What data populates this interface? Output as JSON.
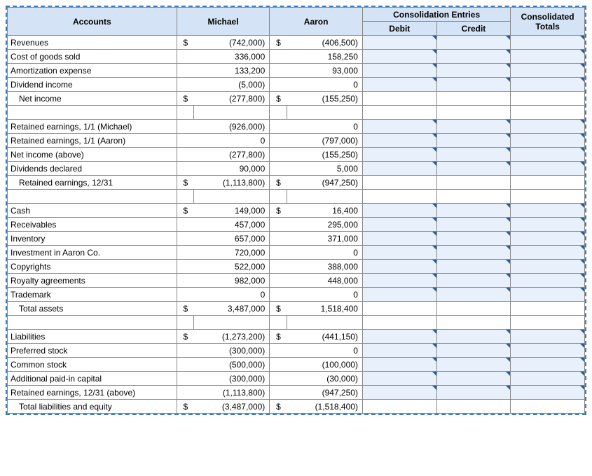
{
  "colors": {
    "header_bg": "#d4e3f5",
    "border": "#888888",
    "dash_border": "#3a7abf",
    "input_bg": "#e8f1fb",
    "corner": "#2a5da8"
  },
  "headers": {
    "accounts": "Accounts",
    "michael": "Michael",
    "aaron": "Aaron",
    "consolidation": "Consolidation Entries",
    "debit": "Debit",
    "credit": "Credit",
    "totals": "Consolidated Totals"
  },
  "rows": [
    {
      "label": "Revenues",
      "mD": "$",
      "m": "(742,000)",
      "aD": "$",
      "a": "(406,500)",
      "in": true
    },
    {
      "label": "Cost of goods sold",
      "m": "336,000",
      "a": "158,250",
      "in": true
    },
    {
      "label": "Amortization expense",
      "m": "133,200",
      "a": "93,000",
      "in": true
    },
    {
      "label": "Dividend income",
      "m": "(5,000)",
      "a": "0",
      "in": true
    },
    {
      "label": "Net income",
      "indent": 1,
      "mD": "$",
      "m": "(277,800)",
      "aD": "$",
      "a": "(155,250)"
    },
    {
      "spacer": true
    },
    {
      "label": "Retained earnings, 1/1 (Michael)",
      "m": "(926,000)",
      "a": "0",
      "in": true
    },
    {
      "label": "Retained earnings, 1/1 (Aaron)",
      "m": "0",
      "a": "(797,000)",
      "in": true
    },
    {
      "label": "Net income (above)",
      "m": "(277,800)",
      "a": "(155,250)",
      "in": true
    },
    {
      "label": "Dividends declared",
      "m": "90,000",
      "a": "5,000",
      "in": true
    },
    {
      "label": "Retained earnings, 12/31",
      "indent": 1,
      "mD": "$",
      "m": "(1,113,800)",
      "aD": "$",
      "a": "(947,250)"
    },
    {
      "spacer": true
    },
    {
      "label": "Cash",
      "mD": "$",
      "m": "149,000",
      "aD": "$",
      "a": "16,400",
      "in": true
    },
    {
      "label": "Receivables",
      "m": "457,000",
      "a": "295,000",
      "in": true
    },
    {
      "label": "Inventory",
      "m": "657,000",
      "a": "371,000",
      "in": true
    },
    {
      "label": "Investment in Aaron Co.",
      "m": "720,000",
      "a": "0",
      "in": true
    },
    {
      "label": "Copyrights",
      "m": "522,000",
      "a": "388,000",
      "in": true
    },
    {
      "label": "Royalty agreements",
      "m": "982,000",
      "a": "448,000",
      "in": true
    },
    {
      "label": "Trademark",
      "m": "0",
      "a": "0",
      "in": true
    },
    {
      "label": "Total assets",
      "indent": 1,
      "mD": "$",
      "m": "3,487,000",
      "aD": "$",
      "a": "1,518,400"
    },
    {
      "spacer": true
    },
    {
      "label": "Liabilities",
      "mD": "$",
      "m": "(1,273,200)",
      "aD": "$",
      "a": "(441,150)",
      "in": true
    },
    {
      "label": "Preferred stock",
      "m": "(300,000)",
      "a": "0",
      "in": true
    },
    {
      "label": "Common stock",
      "m": "(500,000)",
      "a": "(100,000)",
      "in": true
    },
    {
      "label": "Additional paid-in capital",
      "m": "(300,000)",
      "a": "(30,000)",
      "in": true
    },
    {
      "label": "Retained earnings, 12/31 (above)",
      "m": "(1,113,800)",
      "a": "(947,250)",
      "in": true
    },
    {
      "label": "Total liabilities and equity",
      "indent": 1,
      "mD": "$",
      "m": "(3,487,000)",
      "aD": "$",
      "a": "(1,518,400)"
    }
  ]
}
